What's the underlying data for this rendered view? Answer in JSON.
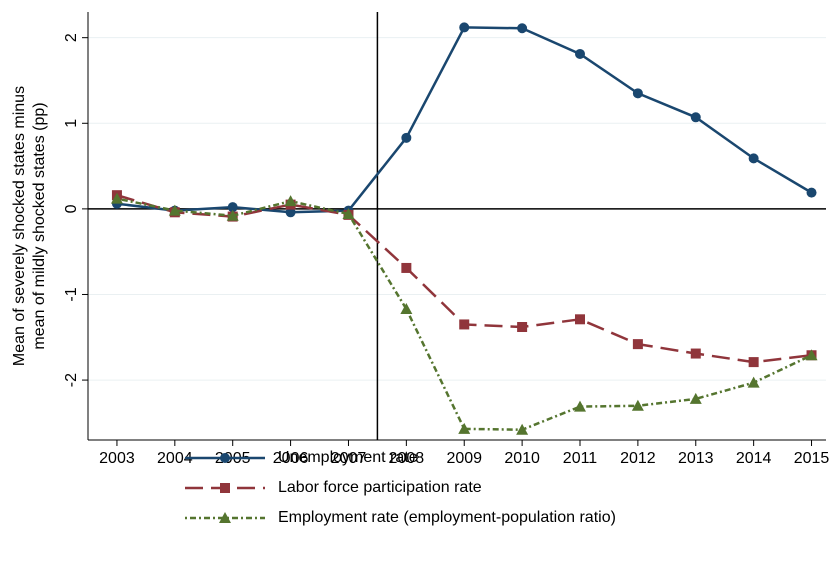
{
  "chart_data": {
    "type": "line",
    "ylabel": [
      "Mean of severely shocked states minus",
      "mean of mildly shocked states (pp)"
    ],
    "x": [
      2003,
      2004,
      2005,
      2006,
      2007,
      2008,
      2009,
      2010,
      2011,
      2012,
      2013,
      2014,
      2015
    ],
    "series": [
      {
        "name": "Unemployment rate",
        "color": "#1a476f",
        "marker": "circle",
        "dash": "none",
        "values": [
          0.06,
          -0.02,
          0.02,
          -0.04,
          -0.02,
          0.83,
          2.12,
          2.11,
          1.81,
          1.35,
          1.07,
          0.59,
          0.19
        ]
      },
      {
        "name": "Labor force participation rate",
        "color": "#90353b",
        "marker": "square",
        "dash": "18 8",
        "values": [
          0.16,
          -0.04,
          -0.09,
          0.05,
          -0.07,
          -0.69,
          -1.35,
          -1.38,
          -1.29,
          -1.58,
          -1.69,
          -1.79,
          -1.71
        ]
      },
      {
        "name": "Employment rate (employment-population ratio)",
        "color": "#55752f",
        "marker": "triangle",
        "dash": "2 3 6 3",
        "values": [
          0.12,
          -0.02,
          -0.08,
          0.09,
          -0.06,
          -1.17,
          -2.57,
          -2.58,
          -2.31,
          -2.3,
          -2.22,
          -2.03,
          -1.71
        ]
      }
    ],
    "xlim": [
      2002.5,
      2015.25
    ],
    "xticks": [
      2003,
      2004,
      2005,
      2006,
      2007,
      2008,
      2009,
      2010,
      2011,
      2012,
      2013,
      2014,
      2015
    ],
    "ylim": [
      -2.7,
      2.3
    ],
    "yticks": [
      -2,
      -1,
      0,
      1,
      2
    ],
    "vline": 2007.5,
    "hline": 0,
    "grid": true
  }
}
